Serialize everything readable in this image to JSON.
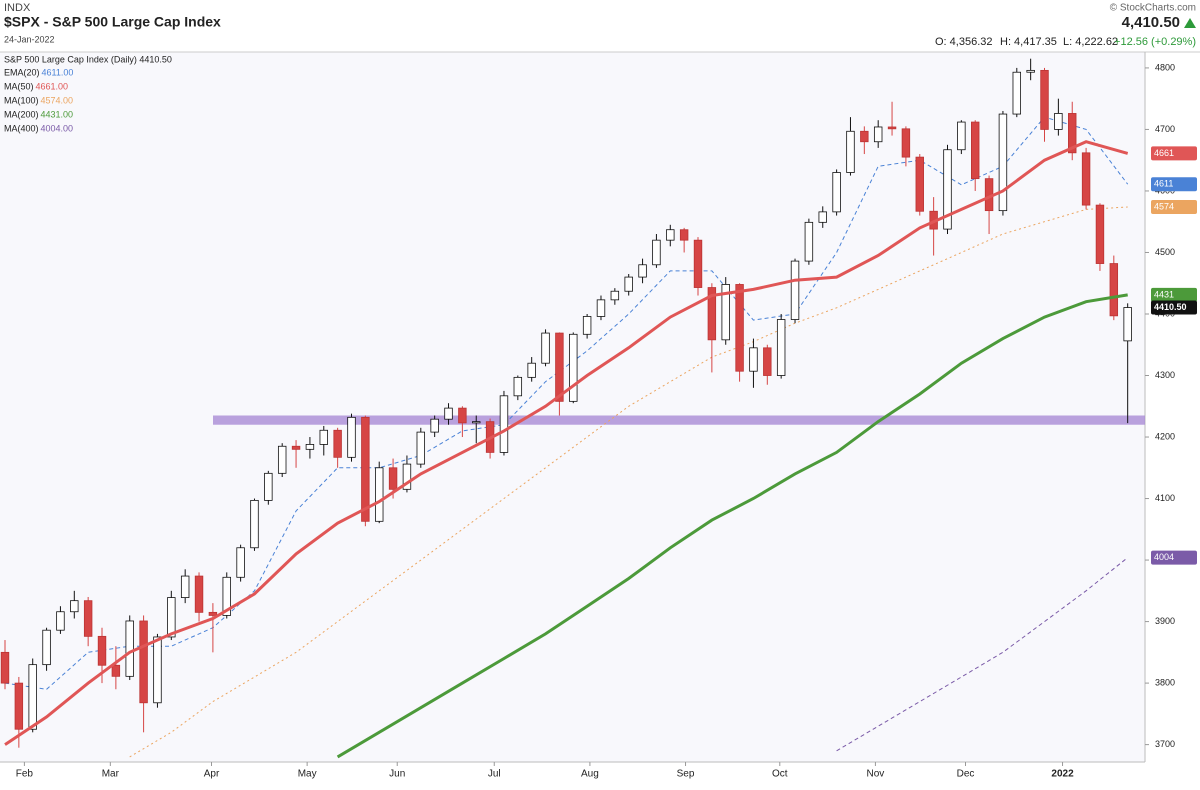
{
  "chart_data": {
    "type": "candlestick",
    "header": {
      "exchange": "INDX",
      "title": "$SPX - S&P 500 Large Cap Index",
      "date": "24-Jan-2022",
      "copyright": "© StockCharts.com",
      "last": "4,410.50",
      "open": "O: 4,356.32",
      "high": "H: 4,417.35",
      "low": "L: 4,222.62",
      "change": "+12.56 (+0.29%)"
    },
    "legend_title": "S&P 500 Large Cap Index (Daily) 4410.50",
    "last_tag": {
      "value": 4410.5,
      "label": "4410.50"
    },
    "up_color": "#ffffff",
    "down_color": "#d64545",
    "ohlc": [
      [
        3850,
        3870,
        3790,
        3800
      ],
      [
        3800,
        3810,
        3695,
        3725
      ],
      [
        3725,
        3840,
        3720,
        3830
      ],
      [
        3830,
        3890,
        3820,
        3886
      ],
      [
        3886,
        3925,
        3880,
        3916
      ],
      [
        3916,
        3950,
        3905,
        3934
      ],
      [
        3934,
        3940,
        3860,
        3876
      ],
      [
        3876,
        3890,
        3800,
        3829
      ],
      [
        3829,
        3860,
        3790,
        3811
      ],
      [
        3811,
        3910,
        3805,
        3901
      ],
      [
        3901,
        3910,
        3720,
        3768
      ],
      [
        3768,
        3880,
        3760,
        3875
      ],
      [
        3875,
        3950,
        3870,
        3939
      ],
      [
        3939,
        3985,
        3930,
        3974
      ],
      [
        3974,
        3980,
        3900,
        3915
      ],
      [
        3915,
        3930,
        3850,
        3910
      ],
      [
        3910,
        3980,
        3905,
        3972
      ],
      [
        3972,
        4025,
        3965,
        4020
      ],
      [
        4020,
        4100,
        4015,
        4097
      ],
      [
        4097,
        4145,
        4090,
        4141
      ],
      [
        4141,
        4190,
        4135,
        4185
      ],
      [
        4185,
        4195,
        4150,
        4180
      ],
      [
        4180,
        4200,
        4165,
        4188
      ],
      [
        4188,
        4218,
        4170,
        4211
      ],
      [
        4211,
        4215,
        4150,
        4167
      ],
      [
        4167,
        4238,
        4160,
        4232
      ],
      [
        4232,
        4235,
        4055,
        4063
      ],
      [
        4063,
        4160,
        4060,
        4150
      ],
      [
        4150,
        4165,
        4100,
        4115
      ],
      [
        4115,
        4170,
        4110,
        4156
      ],
      [
        4156,
        4215,
        4150,
        4208
      ],
      [
        4208,
        4235,
        4200,
        4229
      ],
      [
        4229,
        4255,
        4220,
        4247
      ],
      [
        4247,
        4250,
        4200,
        4223
      ],
      [
        4223,
        4235,
        4190,
        4225
      ],
      [
        4225,
        4230,
        4165,
        4175
      ],
      [
        4175,
        4275,
        4170,
        4267
      ],
      [
        4267,
        4300,
        4260,
        4297
      ],
      [
        4297,
        4330,
        4290,
        4320
      ],
      [
        4320,
        4375,
        4315,
        4369
      ],
      [
        4369,
        4370,
        4235,
        4258
      ],
      [
        4258,
        4370,
        4255,
        4367
      ],
      [
        4367,
        4400,
        4360,
        4396
      ],
      [
        4396,
        4430,
        4390,
        4423
      ],
      [
        4423,
        4442,
        4415,
        4437
      ],
      [
        4437,
        4465,
        4430,
        4460
      ],
      [
        4460,
        4490,
        4450,
        4480
      ],
      [
        4480,
        4530,
        4475,
        4520
      ],
      [
        4520,
        4545,
        4510,
        4537
      ],
      [
        4537,
        4540,
        4500,
        4520
      ],
      [
        4520,
        4525,
        4430,
        4443
      ],
      [
        4443,
        4450,
        4305,
        4358
      ],
      [
        4358,
        4460,
        4350,
        4448
      ],
      [
        4448,
        4450,
        4290,
        4307
      ],
      [
        4307,
        4360,
        4280,
        4345
      ],
      [
        4345,
        4350,
        4285,
        4300
      ],
      [
        4300,
        4400,
        4295,
        4391
      ],
      [
        4391,
        4490,
        4385,
        4486
      ],
      [
        4486,
        4555,
        4480,
        4549
      ],
      [
        4549,
        4575,
        4540,
        4566
      ],
      [
        4566,
        4635,
        4560,
        4630
      ],
      [
        4630,
        4720,
        4625,
        4697
      ],
      [
        4697,
        4705,
        4660,
        4680
      ],
      [
        4680,
        4715,
        4670,
        4704
      ],
      [
        4704,
        4745,
        4690,
        4701
      ],
      [
        4701,
        4705,
        4640,
        4655
      ],
      [
        4655,
        4660,
        4560,
        4567
      ],
      [
        4567,
        4590,
        4495,
        4538
      ],
      [
        4538,
        4675,
        4530,
        4667
      ],
      [
        4667,
        4715,
        4660,
        4712
      ],
      [
        4712,
        4715,
        4600,
        4620
      ],
      [
        4620,
        4625,
        4530,
        4568
      ],
      [
        4568,
        4730,
        4560,
        4725
      ],
      [
        4725,
        4800,
        4720,
        4793
      ],
      [
        4793,
        4815,
        4780,
        4796
      ],
      [
        4796,
        4800,
        4680,
        4700
      ],
      [
        4700,
        4750,
        4690,
        4726
      ],
      [
        4726,
        4745,
        4650,
        4662
      ],
      [
        4662,
        4670,
        4570,
        4577
      ],
      [
        4577,
        4580,
        4470,
        4482
      ],
      [
        4482,
        4495,
        4390,
        4397
      ],
      [
        4356.32,
        4417.35,
        4222.62,
        4410.5
      ]
    ],
    "overlays": {
      "x": [
        0,
        3,
        6,
        9,
        12,
        15,
        18,
        21,
        24,
        27,
        30,
        33,
        36,
        39,
        42,
        45,
        48,
        51,
        54,
        57,
        60,
        63,
        66,
        69,
        72,
        75,
        78,
        81
      ],
      "series": [
        {
          "name": "EMA(20)",
          "legend_value": "4611.00",
          "tag": 4611,
          "color": "#4a82d6",
          "style": "dashed",
          "width": 1,
          "values": [
            3800,
            3790,
            3850,
            3860,
            3860,
            3890,
            3950,
            4080,
            4150,
            4150,
            4170,
            4210,
            4220,
            4290,
            4340,
            4400,
            4470,
            4470,
            4390,
            4400,
            4500,
            4640,
            4650,
            4610,
            4640,
            4720,
            4700,
            4611
          ]
        },
        {
          "name": "MA(50)",
          "legend_value": "4661.00",
          "tag": 4661,
          "color": "#e05656",
          "style": "solid",
          "width": 3,
          "values": [
            3700,
            3745,
            3800,
            3850,
            3880,
            3905,
            3945,
            4010,
            4060,
            4095,
            4140,
            4175,
            4210,
            4250,
            4300,
            4345,
            4395,
            4430,
            4440,
            4455,
            4460,
            4495,
            4540,
            4570,
            4600,
            4650,
            4680,
            4661
          ]
        },
        {
          "name": "MA(100)",
          "legend_value": "4574.00",
          "tag": 4574,
          "color": "#eba560",
          "style": "dotted",
          "width": 1,
          "values": [
            null,
            null,
            null,
            3680,
            3720,
            3770,
            3810,
            3850,
            3900,
            3950,
            4000,
            4050,
            4100,
            4150,
            4200,
            4250,
            4290,
            4330,
            4355,
            4385,
            4410,
            4440,
            4470,
            4500,
            4530,
            4550,
            4570,
            4574
          ]
        },
        {
          "name": "MA(200)",
          "legend_value": "4431.00",
          "tag": 4431,
          "color": "#4c9a3a",
          "style": "solid",
          "width": 3,
          "values": [
            null,
            null,
            null,
            null,
            null,
            null,
            null,
            null,
            3680,
            3720,
            3760,
            3800,
            3840,
            3880,
            3925,
            3970,
            4020,
            4065,
            4100,
            4140,
            4175,
            4225,
            4270,
            4320,
            4360,
            4395,
            4420,
            4431
          ]
        },
        {
          "name": "MA(400)",
          "legend_value": "4004.00",
          "tag": 4004,
          "color": "#7b5ba8",
          "style": "dashed",
          "width": 1,
          "values": [
            null,
            null,
            null,
            null,
            null,
            null,
            null,
            null,
            null,
            null,
            null,
            null,
            null,
            null,
            null,
            null,
            null,
            null,
            null,
            null,
            3690,
            3730,
            3770,
            3810,
            3850,
            3900,
            3950,
            4004
          ]
        }
      ]
    },
    "band": [
      4220,
      4235
    ],
    "band_color": "#a98bd4",
    "ylim": [
      3675,
      4821
    ],
    "yticks": [
      3700,
      3800,
      3900,
      4000,
      4100,
      4200,
      4300,
      4400,
      4500,
      4600,
      4700,
      4800
    ],
    "xlim": [
      -0.36,
      82.25
    ],
    "xticks": [
      {
        "value": 1.4,
        "label": "Feb"
      },
      {
        "value": 7.6,
        "label": "Mar"
      },
      {
        "value": 14.9,
        "label": "Apr"
      },
      {
        "value": 21.8,
        "label": "May"
      },
      {
        "value": 28.3,
        "label": "Jun"
      },
      {
        "value": 35.3,
        "label": "Jul"
      },
      {
        "value": 42.2,
        "label": "Aug"
      },
      {
        "value": 49.1,
        "label": "Sep"
      },
      {
        "value": 55.9,
        "label": "Oct"
      },
      {
        "value": 62.8,
        "label": "Nov"
      },
      {
        "value": 69.3,
        "label": "Dec"
      },
      {
        "value": 76.3,
        "label": "2022"
      }
    ]
  }
}
